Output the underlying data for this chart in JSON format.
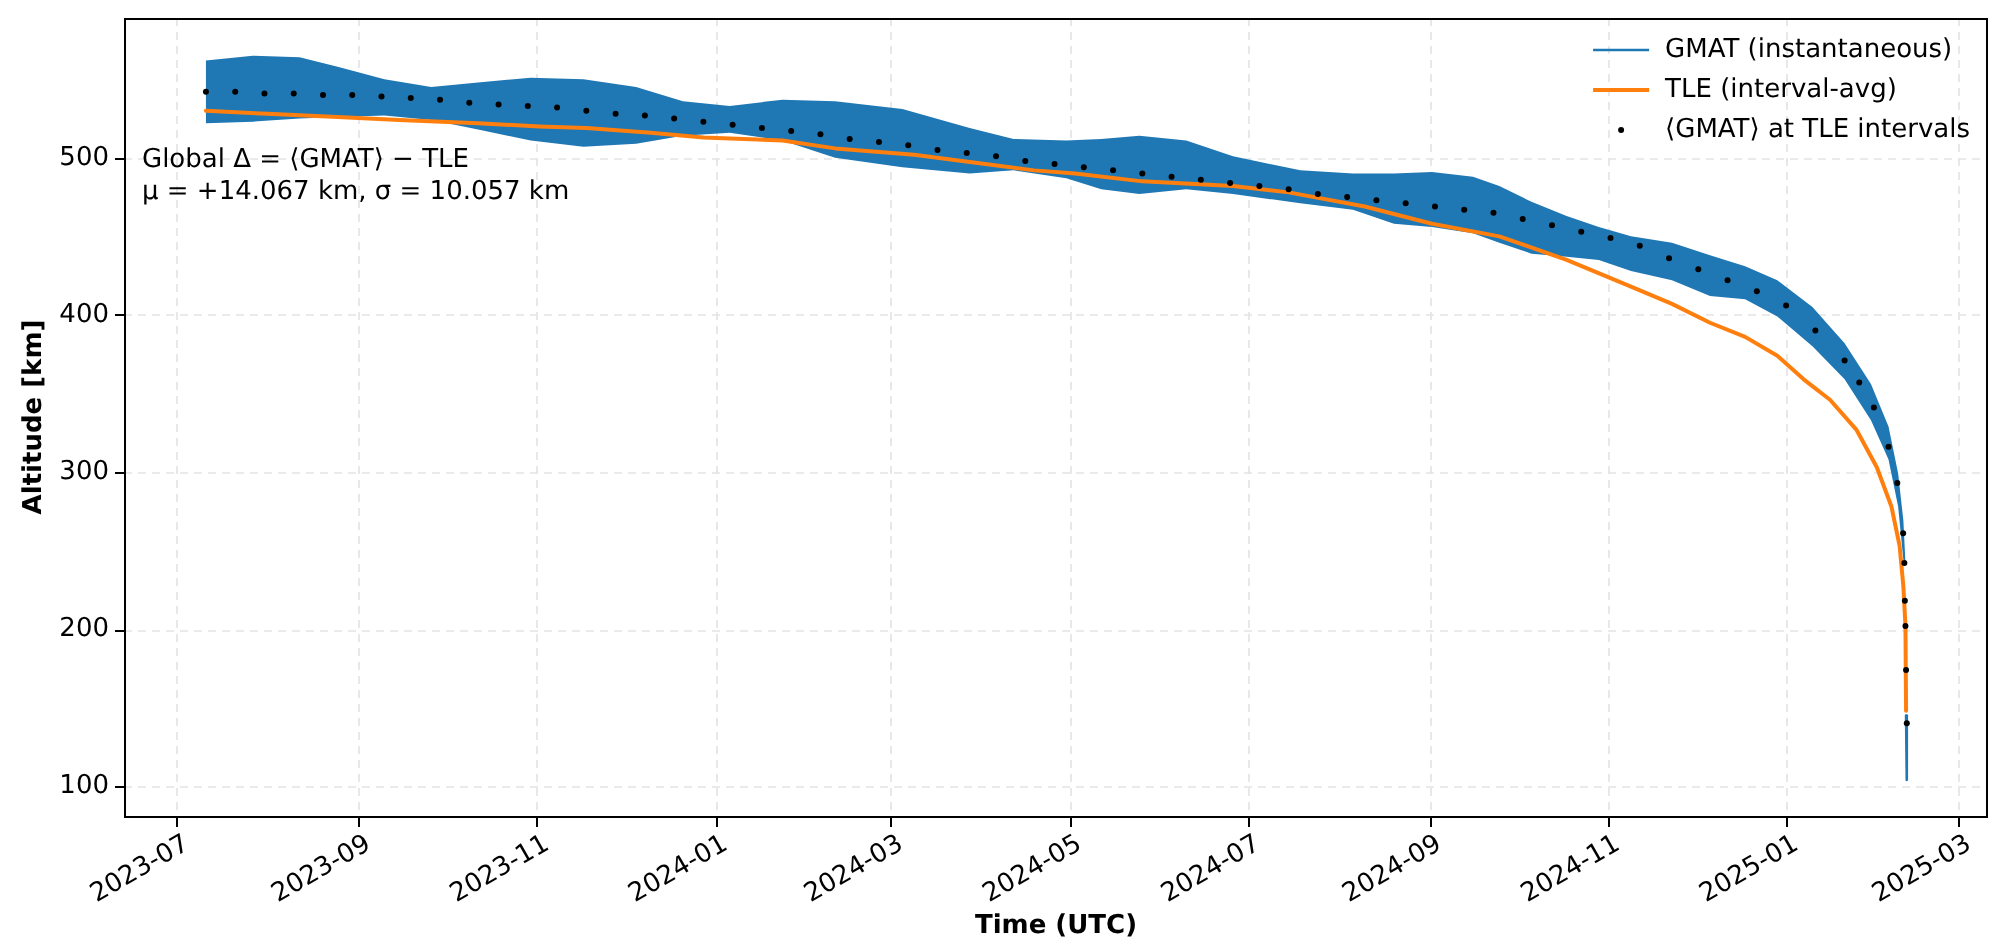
{
  "chart_data": {
    "type": "line",
    "xlabel": "Time (UTC)",
    "ylabel": "Altitude [km]",
    "annotations": [
      "Global Δ = ⟨GMAT⟩ − TLE",
      "μ = +14.067 km, σ = 10.057 km"
    ],
    "xlim": [
      "2023-06-13",
      "2025-03-11"
    ],
    "xticks": [
      "2023-07",
      "2023-09",
      "2023-11",
      "2024-01",
      "2024-03",
      "2024-05",
      "2024-07",
      "2024-09",
      "2024-11",
      "2025-01",
      "2025-03"
    ],
    "ylim": [
      81,
      589
    ],
    "yticks": [
      100,
      200,
      300,
      400,
      500
    ],
    "grid": true,
    "legend": "top right",
    "series": [
      {
        "name": "GMAT (instantaneous)",
        "color": "#1f77b4",
        "x": [
          "2023-07-11",
          "2023-07-27",
          "2023-08-12",
          "2023-08-25",
          "2023-09-10",
          "2023-09-26",
          "2023-10-12",
          "2023-10-30",
          "2023-11-17",
          "2023-12-05",
          "2023-12-21",
          "2024-01-06",
          "2024-01-24",
          "2024-02-11",
          "2024-03-05",
          "2024-03-28",
          "2024-04-12",
          "2024-04-30",
          "2024-05-12",
          "2024-05-25",
          "2024-06-10",
          "2024-06-26",
          "2024-07-19",
          "2024-08-06",
          "2024-08-20",
          "2024-09-02",
          "2024-09-16",
          "2024-09-25",
          "2024-10-06",
          "2024-10-18",
          "2024-10-29",
          "2024-11-09",
          "2024-11-23",
          "2024-12-06",
          "2024-12-18",
          "2024-12-29",
          "2025-01-10",
          "2025-01-21",
          "2025-01-30",
          "2025-02-05",
          "2025-02-08T07:00",
          "2025-02-10T02:00",
          "2025-02-10T19:00",
          "2025-02-11T00:00",
          "2025-02-11T06:00"
        ],
        "values": [
          null,
          null,
          null,
          null,
          null,
          null,
          null,
          null,
          null,
          null,
          null,
          null,
          null,
          null,
          null,
          null,
          null,
          null,
          null,
          null,
          null,
          null,
          null,
          null,
          null,
          null,
          null,
          null,
          null,
          null,
          null,
          null,
          null,
          null,
          null,
          null,
          null,
          null,
          null,
          null,
          null,
          null,
          null,
          145,
          104
        ],
        "lower": [
          522,
          523,
          525,
          526,
          527,
          524,
          518,
          511,
          507,
          509,
          514,
          516,
          511,
          500,
          494,
          490,
          492,
          487,
          480,
          477,
          480,
          477,
          471,
          467,
          458,
          456,
          452,
          446,
          439,
          437,
          435,
          428,
          422,
          412,
          410,
          399,
          380,
          359,
          333,
          308,
          278,
          244,
          242,
          null,
          null
        ],
        "upper": [
          562,
          565,
          564,
          558,
          550,
          545,
          548,
          551,
          550,
          545,
          536,
          533,
          537,
          536,
          531,
          519,
          512,
          511,
          512,
          514,
          511,
          501,
          492,
          490,
          490,
          491,
          488,
          482,
          472,
          463,
          456,
          450,
          446,
          438,
          431,
          422,
          405,
          382,
          356,
          329,
          299,
          269,
          242,
          null,
          null
        ]
      },
      {
        "name": "TLE (interval-avg)",
        "color": "#ff7f0e",
        "x": [
          "2023-07-11",
          "2023-08-01",
          "2023-08-25",
          "2023-09-15",
          "2023-10-12",
          "2023-11-02",
          "2023-11-18",
          "2023-12-10",
          "2023-12-28",
          "2024-01-24",
          "2024-02-11",
          "2024-03-09",
          "2024-04-19",
          "2024-05-03",
          "2024-05-26",
          "2024-06-26",
          "2024-07-15",
          "2024-08-10",
          "2024-09-02",
          "2024-09-25",
          "2024-10-18",
          "2024-11-09",
          "2024-11-23",
          "2024-12-06",
          "2024-12-18",
          "2024-12-29",
          "2025-01-07",
          "2025-01-16",
          "2025-01-25",
          "2025-02-01",
          "2025-02-06",
          "2025-02-08T19:00",
          "2025-02-10T02:00",
          "2025-02-10T19:00",
          "2025-02-11T00:00"
        ],
        "values": [
          530,
          528,
          526,
          524,
          522,
          520,
          519,
          516,
          513,
          511,
          506,
          502,
          492,
          490,
          485,
          482,
          478,
          469,
          458,
          450,
          435,
          418,
          407,
          395,
          386,
          374,
          359,
          346,
          327,
          303,
          278,
          253,
          227,
          202,
          148
        ]
      },
      {
        "name": "⟨GMAT⟩ at TLE intervals",
        "type": "scatter",
        "marker": "circle",
        "color": "#000000",
        "x": [
          "2023-07-11",
          "2023-07-21",
          "2023-07-31",
          "2023-08-10",
          "2023-08-20",
          "2023-08-30",
          "2023-09-09",
          "2023-09-19",
          "2023-09-29",
          "2023-10-09",
          "2023-10-19",
          "2023-10-29",
          "2023-11-08",
          "2023-11-18",
          "2023-11-28",
          "2023-12-08",
          "2023-12-18",
          "2023-12-28",
          "2024-01-07",
          "2024-01-17",
          "2024-01-27",
          "2024-02-06",
          "2024-02-16",
          "2024-02-26",
          "2024-03-07",
          "2024-03-17",
          "2024-03-27",
          "2024-04-06",
          "2024-04-16",
          "2024-04-26",
          "2024-05-06",
          "2024-05-16",
          "2024-05-26",
          "2024-06-05",
          "2024-06-15",
          "2024-06-25",
          "2024-07-05",
          "2024-07-15",
          "2024-07-25",
          "2024-08-04",
          "2024-08-14",
          "2024-08-24",
          "2024-09-03",
          "2024-09-13",
          "2024-09-23",
          "2024-10-03",
          "2024-10-13",
          "2024-10-23",
          "2024-11-02",
          "2024-11-12",
          "2024-11-22",
          "2024-12-02",
          "2024-12-12",
          "2024-12-22",
          "2025-01-01",
          "2025-01-11",
          "2025-01-21",
          "2025-01-26",
          "2025-01-31",
          "2025-02-05",
          "2025-02-08",
          "2025-02-10",
          "2025-02-10T10:00",
          "2025-02-10T14:00",
          "2025-02-10T19:00",
          "2025-02-11T00:00",
          "2025-02-11T06:00"
        ],
        "values": [
          542,
          542,
          541,
          541,
          540,
          540,
          539,
          538,
          537,
          535,
          534,
          533,
          532,
          530,
          528,
          527,
          525,
          523,
          521,
          519,
          517,
          515,
          512,
          510,
          508,
          505,
          503,
          501,
          498,
          496,
          494,
          492,
          490,
          488,
          486,
          484,
          482,
          480,
          477,
          475,
          473,
          471,
          469,
          467,
          465,
          461,
          457,
          453,
          449,
          444,
          436,
          429,
          422,
          415,
          406,
          390,
          371,
          357,
          341,
          316,
          293,
          261,
          242,
          218,
          202,
          174,
          140
        ]
      }
    ]
  }
}
